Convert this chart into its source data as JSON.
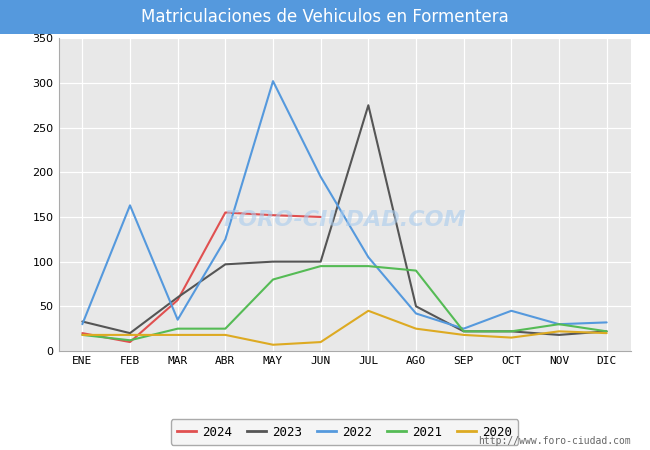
{
  "title": "Matriculaciones de Vehiculos en Formentera",
  "title_color": "#ffffff",
  "title_bg_color": "#5599dd",
  "months": [
    "ENE",
    "FEB",
    "MAR",
    "ABR",
    "MAY",
    "JUN",
    "JUL",
    "AGO",
    "SEP",
    "OCT",
    "NOV",
    "DIC"
  ],
  "series": {
    "2024": {
      "color": "#e05050",
      "data": [
        20,
        10,
        57,
        155,
        152,
        150,
        null,
        null,
        null,
        null,
        null,
        null
      ]
    },
    "2023": {
      "color": "#555555",
      "data": [
        33,
        20,
        60,
        97,
        100,
        100,
        275,
        50,
        22,
        22,
        18,
        22
      ]
    },
    "2022": {
      "color": "#5599dd",
      "data": [
        30,
        163,
        35,
        125,
        302,
        195,
        105,
        42,
        25,
        45,
        30,
        32
      ]
    },
    "2021": {
      "color": "#55bb55",
      "data": [
        18,
        12,
        25,
        25,
        80,
        95,
        95,
        90,
        22,
        22,
        30,
        22
      ]
    },
    "2020": {
      "color": "#ddaa22",
      "data": [
        18,
        18,
        18,
        18,
        7,
        10,
        45,
        25,
        18,
        15,
        22,
        20
      ]
    }
  },
  "ylim": [
    0,
    350
  ],
  "yticks": [
    0,
    50,
    100,
    150,
    200,
    250,
    300,
    350
  ],
  "url": "http://www.foro-ciudad.com",
  "bg_color": "#ffffff",
  "plot_bg_color": "#e8e8e8",
  "grid_color": "#ffffff",
  "legend_order": [
    "2024",
    "2023",
    "2022",
    "2021",
    "2020"
  ]
}
